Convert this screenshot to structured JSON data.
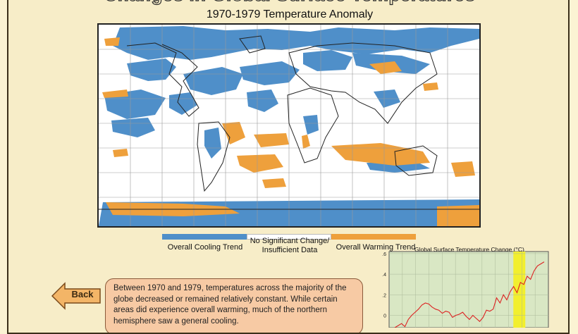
{
  "header": {
    "title": "Changes in Global Surface Temperatures",
    "subtitle": "1970-1979 Temperature Anomaly"
  },
  "legend": {
    "cooling_label": "Overall Cooling Trend",
    "no_change_label": "No Significant Change/ Insufficient Data",
    "warming_label": "Overall Warming Trend",
    "cooling_color": "#4f8fc9",
    "no_change_color": "#ffffff",
    "warming_color": "#eea03c"
  },
  "nav": {
    "back_label": "Back"
  },
  "description": "Between 1970 and 1979, temperatures across the majority of the globe decreased or remained relatively constant. While certain areas did experience overall warming, much of the northern hemisphere saw a general cooling.",
  "chart_data": {
    "type": "line",
    "title": "Global Surface Temperature Change (°C)",
    "xlabel": "",
    "ylabel": "",
    "ytick_labels": [
      ".6",
      ".4",
      ".2",
      "0"
    ],
    "ylim": [
      -0.12,
      0.62
    ],
    "grid": true,
    "highlight_band_color": "#f2ef2e",
    "series": [
      {
        "values": [
          -0.12,
          -0.1,
          -0.08,
          -0.11,
          -0.04,
          0.0,
          0.03,
          0.06,
          0.1,
          0.12,
          0.11,
          0.08,
          0.06,
          0.05,
          0.02,
          0.04,
          0.03,
          -0.02,
          0.0,
          0.01,
          0.03,
          -0.01,
          -0.04,
          0.0,
          -0.03,
          -0.06,
          -0.02,
          0.05,
          0.04,
          0.06,
          0.17,
          0.12,
          0.2,
          0.15,
          0.23,
          0.28,
          0.22,
          0.32,
          0.3,
          0.38,
          0.35,
          0.43,
          0.48,
          0.5,
          0.52
        ]
      }
    ]
  }
}
